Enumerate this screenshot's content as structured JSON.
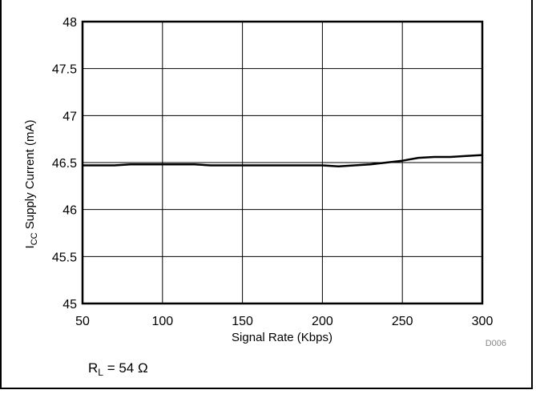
{
  "chart_data": {
    "type": "line",
    "title": "",
    "xlabel": "Signal Rate (Kbps)",
    "ylabel": {
      "prefix": "I",
      "subscript": "CC",
      "suffix": " Supply Current (mA)"
    },
    "xlim": [
      50,
      300
    ],
    "ylim": [
      45,
      48
    ],
    "x_ticks": [
      50,
      100,
      150,
      200,
      250,
      300
    ],
    "y_ticks": [
      45,
      45.5,
      46,
      46.5,
      47,
      47.5,
      48
    ],
    "grid": true,
    "series": [
      {
        "x": [
          50,
          60,
          70,
          80,
          90,
          100,
          110,
          120,
          130,
          140,
          150,
          160,
          170,
          180,
          190,
          200,
          210,
          220,
          230,
          240,
          250,
          260,
          270,
          280,
          290,
          300
        ],
        "y": [
          46.47,
          46.47,
          46.47,
          46.48,
          46.48,
          46.48,
          46.48,
          46.48,
          46.47,
          46.47,
          46.47,
          46.47,
          46.47,
          46.47,
          46.47,
          46.47,
          46.46,
          46.47,
          46.48,
          46.5,
          46.52,
          46.55,
          46.56,
          46.56,
          46.57,
          46.58
        ],
        "color": "#000000"
      }
    ],
    "reference_line": 46.5,
    "figure_id": "D006",
    "annotation": {
      "prefix": "R",
      "subscript": "L",
      "suffix": " = 54 Ω"
    }
  }
}
